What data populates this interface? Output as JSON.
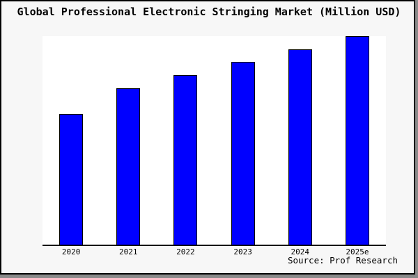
{
  "title": "Global Professional Electronic Stringing Market (Million USD)",
  "source_note": "Source: Prof Research",
  "colors": {
    "bar_fill": "#0000ff",
    "bar_border": "#000000",
    "plot_bg": "#ffffff",
    "canvas_bg": "#f7f7f7",
    "frame_border": "#000000",
    "axis": "#000000",
    "shadow": "#8a8a8a",
    "text": "#000000"
  },
  "chart_data": {
    "type": "bar",
    "title": "Global Professional Electronic Stringing Market (Million USD)",
    "categories": [
      "2020",
      "2021",
      "2022",
      "2023",
      "2024",
      "2025e"
    ],
    "values": [
      62.7,
      75.0,
      81.3,
      87.7,
      93.7,
      100.0
    ],
    "xlabel": "",
    "ylabel": "",
    "ylim": [
      0,
      100
    ],
    "y_axis_tick_labels": "none (values are relative bar heights, % of tallest bar)",
    "grid": false,
    "legend": false,
    "annotation": "Source: Prof Research"
  }
}
